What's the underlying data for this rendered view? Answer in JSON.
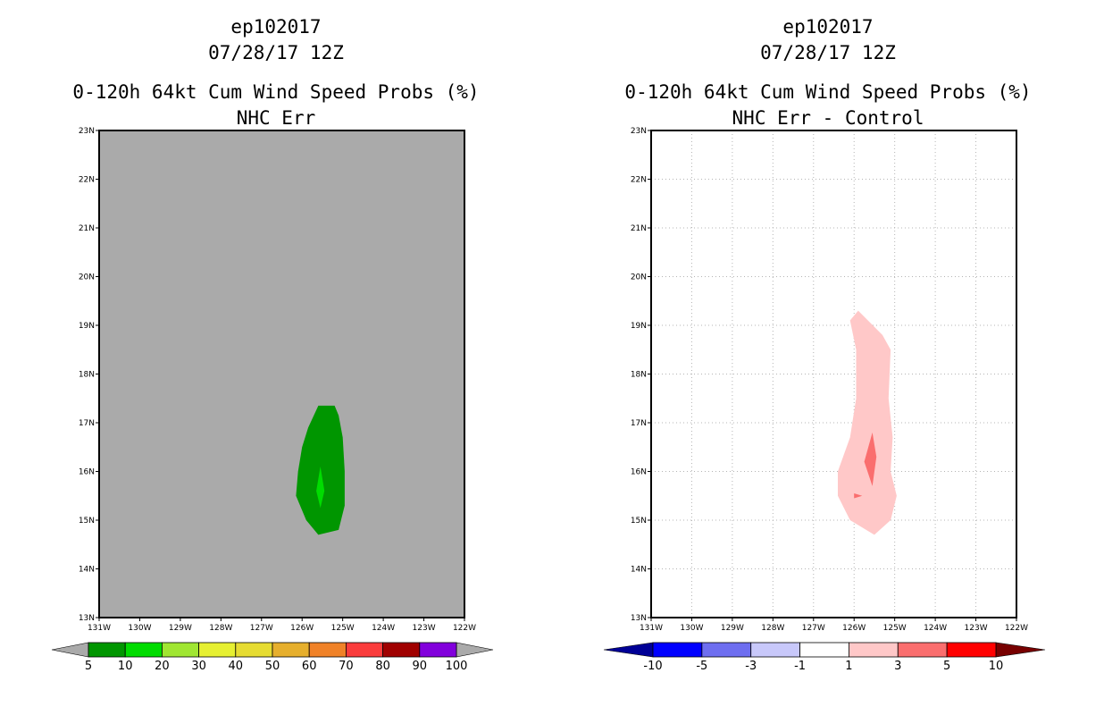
{
  "charts": [
    {
      "line1": "ep102017",
      "line2": "07/28/17 12Z",
      "line3": "0-120h 64kt Cum Wind Speed Probs (%)",
      "line4": "NHC Err",
      "background": "#aaaaaa",
      "grid": false
    },
    {
      "line1": "ep102017",
      "line2": "07/28/17 12Z",
      "line3": "0-120h 64kt Cum Wind Speed Probs (%)",
      "line4": "NHC Err - Control",
      "background": "#ffffff",
      "grid": true
    }
  ],
  "chart_data": [
    {
      "type": "heatmap",
      "title": "0-120h 64kt Cum Wind Speed Probs (%)",
      "subtitle": "NHC Err",
      "xlim": [
        -131,
        -122
      ],
      "ylim": [
        13,
        23
      ],
      "x_ticks": [
        -131,
        -130,
        -129,
        -128,
        -127,
        -126,
        -125,
        -124,
        -123,
        -122
      ],
      "x_tick_labels": [
        "131W",
        "130W",
        "129W",
        "128W",
        "127W",
        "126W",
        "125W",
        "124W",
        "123W",
        "122W"
      ],
      "y_ticks": [
        13,
        14,
        15,
        16,
        17,
        18,
        19,
        20,
        21,
        22,
        23
      ],
      "y_tick_labels": [
        "13N",
        "14N",
        "15N",
        "16N",
        "17N",
        "18N",
        "19N",
        "20N",
        "21N",
        "22N",
        "23N"
      ],
      "contours": [
        {
          "level": "5-10",
          "color": "#009600",
          "polygon": [
            [
              -125.6,
              14.7
            ],
            [
              -125.1,
              14.8
            ],
            [
              -124.95,
              15.3
            ],
            [
              -124.95,
              16.0
            ],
            [
              -125.0,
              16.7
            ],
            [
              -125.1,
              17.15
            ],
            [
              -125.2,
              17.35
            ],
            [
              -125.6,
              17.35
            ],
            [
              -125.85,
              16.9
            ],
            [
              -126.0,
              16.5
            ],
            [
              -126.1,
              16.0
            ],
            [
              -126.15,
              15.5
            ],
            [
              -125.9,
              15.0
            ]
          ]
        },
        {
          "level": "10-20",
          "color": "#00dc00",
          "polygon": [
            [
              -125.55,
              16.1
            ],
            [
              -125.45,
              15.6
            ],
            [
              -125.55,
              15.25
            ],
            [
              -125.65,
              15.6
            ]
          ]
        }
      ],
      "colorbar": {
        "labels": [
          "5",
          "10",
          "20",
          "30",
          "40",
          "50",
          "60",
          "70",
          "80",
          "90",
          "100"
        ],
        "colors": [
          "#009600",
          "#00dc00",
          "#a0e632",
          "#e6f032",
          "#e6dc32",
          "#e6af2d",
          "#f08228",
          "#fa3c3c",
          "#a00000",
          "#8200dc"
        ],
        "under_color": "#aaaaaa",
        "over_color": "#aaaaaa"
      }
    },
    {
      "type": "heatmap",
      "title": "0-120h 64kt Cum Wind Speed Probs (%)",
      "subtitle": "NHC Err - Control",
      "xlim": [
        -131,
        -122
      ],
      "ylim": [
        13,
        23
      ],
      "x_ticks": [
        -131,
        -130,
        -129,
        -128,
        -127,
        -126,
        -125,
        -124,
        -123,
        -122
      ],
      "x_tick_labels": [
        "131W",
        "130W",
        "129W",
        "128W",
        "127W",
        "126W",
        "125W",
        "124W",
        "123W",
        "122W"
      ],
      "y_ticks": [
        13,
        14,
        15,
        16,
        17,
        18,
        19,
        20,
        21,
        22,
        23
      ],
      "y_tick_labels": [
        "13N",
        "14N",
        "15N",
        "16N",
        "17N",
        "18N",
        "19N",
        "20N",
        "21N",
        "22N",
        "23N"
      ],
      "contours": [
        {
          "level": "1-3",
          "color": "#ffc8c8",
          "polygon": [
            [
              -125.5,
              14.7
            ],
            [
              -125.1,
              15.0
            ],
            [
              -124.95,
              15.5
            ],
            [
              -125.1,
              16.0
            ],
            [
              -125.05,
              16.7
            ],
            [
              -125.15,
              17.5
            ],
            [
              -125.1,
              18.5
            ],
            [
              -125.3,
              18.8
            ],
            [
              -125.9,
              19.3
            ],
            [
              -126.1,
              19.1
            ],
            [
              -125.95,
              18.5
            ],
            [
              -125.95,
              17.5
            ],
            [
              -126.1,
              16.7
            ],
            [
              -126.4,
              16.0
            ],
            [
              -126.4,
              15.5
            ],
            [
              -126.1,
              15.0
            ]
          ]
        },
        {
          "level": "3-5",
          "color": "#fa6e6e",
          "polygon": [
            [
              -125.55,
              16.8
            ],
            [
              -125.45,
              16.3
            ],
            [
              -125.55,
              15.7
            ],
            [
              -125.75,
              16.2
            ]
          ]
        },
        {
          "level": "3-5",
          "color": "#fa6e6e",
          "polygon": [
            [
              -126.0,
              15.55
            ],
            [
              -125.8,
              15.5
            ],
            [
              -126.0,
              15.45
            ]
          ]
        }
      ],
      "colorbar": {
        "labels": [
          "-10",
          "-5",
          "-3",
          "-1",
          "1",
          "3",
          "5",
          "10"
        ],
        "colors": [
          "#0000ff",
          "#6e6ef0",
          "#c8c8fa",
          "#ffffff",
          "#ffc8c8",
          "#fa6e6e",
          "#ff0000"
        ],
        "under_color": "#000096",
        "over_color": "#780000"
      }
    }
  ]
}
